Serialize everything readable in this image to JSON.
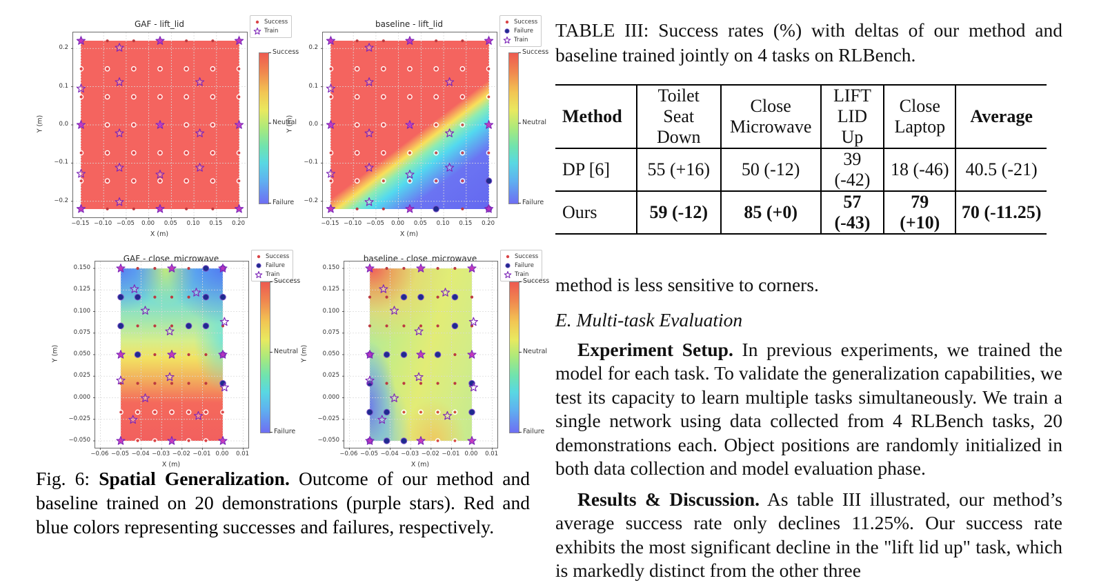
{
  "figure": {
    "caption": {
      "lead": "Fig. 6: ",
      "bold": "Spatial Generalization.",
      "rest": " Outcome of our method and baseline trained on 20 demonstrations (purple stars). Red and blue colors representing successes and failures, respectively."
    },
    "colors": {
      "success_dot": "#d94346",
      "success_dot_dark": "#bc3a40",
      "failure_fill": "#1f2b8e",
      "failure_edge": "#7a50c8",
      "train_stroke": "#7d26b8",
      "train_fill": "#c437c4",
      "heat_red": "#f4645f",
      "grid_line": "#d9d9d9",
      "colorbar_gradient": "linear-gradient(180deg,#ee5a50 0%,#f0894f 13%,#f2c553 26%,#e9e95f 38%,#aae97c 50%,#70e3ae 62%,#59d8e2 73%,#5fb0f0 85%,#6e6ef2 100%)"
    },
    "colorbar_labels": [
      "Success",
      "Neutral",
      "Failure"
    ],
    "plots": [
      {
        "id": "gaf-lift-lid",
        "title": "GAF - lift_lid",
        "xlabel": "X (m)",
        "ylabel": "Y (m)",
        "xlim": [
          -0.1675,
          0.2175
        ],
        "ylim": [
          -0.242,
          0.242
        ],
        "xticks": [
          -0.15,
          -0.1,
          -0.05,
          0.0,
          0.05,
          0.1,
          0.15,
          0.2
        ],
        "xtick_labels": [
          "−0.15",
          "−0.10",
          "−0.05",
          "0.00",
          "0.05",
          "0.10",
          "0.15",
          "0.20"
        ],
        "yticks": [
          0.2,
          0.1,
          0.0,
          -0.1,
          -0.2
        ],
        "ytick_labels": [
          "0.2",
          "0.1",
          "0.0",
          "−0.1",
          "−0.2"
        ],
        "grid_x": [
          -0.15,
          -0.0917,
          -0.0333,
          0.025,
          0.0833,
          0.1417,
          0.2
        ],
        "grid_y": [
          0.22,
          0.1467,
          0.0733,
          0,
          -0.0733,
          -0.1467,
          -0.22
        ],
        "ring_rows": [
          1,
          2,
          3,
          4,
          5
        ],
        "legend": [
          "Success",
          "Train"
        ],
        "bg": "linear-gradient(180deg,#f4645f,#f4645f)",
        "failures": [],
        "stars": [
          [
            -0.15,
            0.22,
            1
          ],
          [
            0.025,
            0.22,
            1
          ],
          [
            0.2,
            0.22,
            1
          ],
          [
            -0.065,
            0.202,
            0
          ],
          [
            -0.15,
            0.095,
            0
          ],
          [
            -0.065,
            0.112,
            0
          ],
          [
            0.113,
            0.112,
            0
          ],
          [
            -0.15,
            0,
            1
          ],
          [
            0.025,
            0,
            1
          ],
          [
            0.2,
            0,
            1
          ],
          [
            -0.065,
            -0.022,
            0
          ],
          [
            0.113,
            -0.022,
            0
          ],
          [
            -0.15,
            -0.128,
            0
          ],
          [
            -0.065,
            -0.112,
            0
          ],
          [
            0.113,
            -0.112,
            0
          ],
          [
            0.025,
            -0.13,
            0
          ],
          [
            -0.065,
            -0.202,
            0
          ],
          [
            -0.15,
            -0.22,
            1
          ],
          [
            0.025,
            -0.22,
            1
          ],
          [
            0.2,
            -0.22,
            1
          ]
        ]
      },
      {
        "id": "baseline-lift-lid",
        "title": "baseline - lift_lid",
        "xlabel": "X (m)",
        "ylabel": "Y (m)",
        "xlim": [
          -0.1675,
          0.2175
        ],
        "ylim": [
          -0.242,
          0.242
        ],
        "xticks": [
          -0.15,
          -0.1,
          -0.05,
          0.0,
          0.05,
          0.1,
          0.15,
          0.2
        ],
        "xtick_labels": [
          "−0.15",
          "−0.10",
          "−0.05",
          "0.00",
          "0.05",
          "0.10",
          "0.15",
          "0.20"
        ],
        "yticks": [
          0.2,
          0.1,
          0.0,
          -0.1,
          -0.2
        ],
        "ytick_labels": [
          "0.2",
          "0.1",
          "0.0",
          "−0.1",
          "−0.2"
        ],
        "grid_x": [
          -0.15,
          -0.0917,
          -0.0333,
          0.025,
          0.0833,
          0.1417,
          0.2
        ],
        "grid_y": [
          0.22,
          0.1467,
          0.0733,
          0,
          -0.0733,
          -0.1467,
          -0.22
        ],
        "ring_rows": [
          1,
          2,
          3,
          4,
          5
        ],
        "legend": [
          "Success",
          "Failure",
          "Train"
        ],
        "bg": "linear-gradient(143deg, rgba(244,100,95,0) 0%, rgba(244,100,95,0) 52%, rgba(250,224,90,0) 55%, #f9e05a 60%, #8cecb4 64%, #53d9ef 69%, #6b74f2 79%, #6468f0 100%), linear-gradient(180deg,#f4645f,#f4645f)",
        "failures": [
          [
            0.0833,
            -0.22
          ],
          [
            0.2,
            -0.1467
          ],
          [
            0.2,
            -0.22
          ]
        ],
        "stars": [
          [
            -0.15,
            0.22,
            1
          ],
          [
            0.025,
            0.22,
            1
          ],
          [
            0.2,
            0.22,
            1
          ],
          [
            -0.065,
            0.202,
            0
          ],
          [
            -0.15,
            0.095,
            0
          ],
          [
            -0.065,
            0.112,
            0
          ],
          [
            0.113,
            0.112,
            0
          ],
          [
            -0.15,
            0,
            1
          ],
          [
            0.025,
            0,
            1
          ],
          [
            0.2,
            0,
            1
          ],
          [
            -0.065,
            -0.022,
            0
          ],
          [
            0.113,
            -0.022,
            0
          ],
          [
            -0.15,
            -0.128,
            0
          ],
          [
            -0.065,
            -0.112,
            0
          ],
          [
            0.113,
            -0.112,
            0
          ],
          [
            0.025,
            -0.13,
            0
          ],
          [
            -0.065,
            -0.202,
            0
          ],
          [
            -0.15,
            -0.22,
            1
          ],
          [
            0.025,
            -0.22,
            1
          ],
          [
            0.2,
            -0.22,
            1
          ]
        ]
      },
      {
        "id": "gaf-close-microwave",
        "title": "GAF - close_microwave",
        "xlabel": "X (m)",
        "ylabel": "Y (m)",
        "xlim": [
          -0.0625,
          0.0125
        ],
        "ylim": [
          -0.058,
          0.158
        ],
        "xticks": [
          -0.06,
          -0.05,
          -0.04,
          -0.03,
          -0.02,
          -0.01,
          0.0,
          0.01
        ],
        "xtick_labels": [
          "−0.06",
          "−0.05",
          "−0.04",
          "−0.03",
          "−0.02",
          "−0.01",
          "0.00",
          "0.01"
        ],
        "yticks": [
          0.15,
          0.125,
          0.1,
          0.075,
          0.05,
          0.025,
          0.0,
          -0.025,
          -0.05
        ],
        "ytick_labels": [
          "0.150",
          "0.125",
          "0.100",
          "0.075",
          "0.050",
          "0.025",
          "0.000",
          "−0.025",
          "−0.050"
        ],
        "grid_x": [
          -0.05,
          -0.0417,
          -0.0333,
          -0.025,
          -0.0167,
          -0.0083,
          0
        ],
        "grid_y": [
          0.15,
          0.1167,
          0.0833,
          0.05,
          0.0167,
          -0.0167,
          -0.05
        ],
        "ring_rows": [
          5,
          6
        ],
        "legend": [
          "Success",
          "Failure",
          "Train"
        ],
        "bg": "radial-gradient(circle at 0% 0%, rgba(85,115,240,0.8) 0%, rgba(85,115,240,0) 22%), radial-gradient(circle at 100% 0%, rgba(80,110,242,0.85) 0%, rgba(80,110,242,0) 28%), radial-gradient(ellipse 30% 22% at 44% 0%, rgba(205,238,110,0.9), rgba(205,238,110,0) 100%), radial-gradient(ellipse 28% 30% at 100% 42%, rgba(90,225,235,0.75), rgba(90,225,235,0) 100%), linear-gradient(180deg, #5ec8f2 0%, #72dbd8 16%, #a2e6b0 30%, #d6ee8c 42%, #f2e262 52%, #f2b05c 64%, #f4695c 78%, #f2605e 100%)",
        "failures": [
          [
            -0.0083,
            0.15
          ],
          [
            0,
            0.15
          ],
          [
            -0.05,
            0.1167
          ],
          [
            -0.0417,
            0.1167
          ],
          [
            -0.0083,
            0.1167
          ],
          [
            0,
            0.1167
          ],
          [
            -0.05,
            0.0833
          ],
          [
            -0.0167,
            0.0833
          ],
          [
            -0.0083,
            0.0833
          ],
          [
            -0.0417,
            0.05
          ],
          [
            0,
            0.05
          ],
          [
            0,
            0.0167
          ]
        ],
        "stars": [
          [
            -0.05,
            0.15,
            1
          ],
          [
            -0.025,
            0.15,
            1
          ],
          [
            0,
            0.15,
            1
          ],
          [
            -0.0433,
            0.126,
            0
          ],
          [
            -0.013,
            0.122,
            0
          ],
          [
            -0.038,
            0.101,
            0
          ],
          [
            0.0008,
            0.088,
            0
          ],
          [
            -0.026,
            0.077,
            0
          ],
          [
            -0.05,
            0.05,
            1
          ],
          [
            -0.025,
            0.05,
            1
          ],
          [
            0,
            0.05,
            1
          ],
          [
            -0.05,
            0.02,
            0
          ],
          [
            -0.026,
            0.024,
            0
          ],
          [
            0.0008,
            0.012,
            0
          ],
          [
            -0.038,
            -0.0005,
            0
          ],
          [
            -0.044,
            -0.0255,
            0
          ],
          [
            -0.012,
            -0.021,
            0
          ],
          [
            -0.05,
            -0.05,
            1
          ],
          [
            -0.025,
            -0.05,
            1
          ],
          [
            0,
            -0.05,
            1
          ]
        ]
      },
      {
        "id": "baseline-close-microwave",
        "title": "baseline - close_microwave",
        "xlabel": "X (m)",
        "ylabel": "Y (m)",
        "xlim": [
          -0.0625,
          0.0125
        ],
        "ylim": [
          -0.058,
          0.158
        ],
        "xticks": [
          -0.06,
          -0.05,
          -0.04,
          -0.03,
          -0.02,
          -0.01,
          0.0,
          0.01
        ],
        "xtick_labels": [
          "−0.06",
          "−0.05",
          "−0.04",
          "−0.03",
          "−0.02",
          "−0.01",
          "0.00",
          "0.01"
        ],
        "yticks": [
          0.15,
          0.125,
          0.1,
          0.075,
          0.05,
          0.025,
          0.0,
          -0.025,
          -0.05
        ],
        "ytick_labels": [
          "0.150",
          "0.125",
          "0.100",
          "0.075",
          "0.050",
          "0.025",
          "0.000",
          "−0.025",
          "−0.050"
        ],
        "grid_x": [
          -0.05,
          -0.0417,
          -0.0333,
          -0.025,
          -0.0167,
          -0.0083,
          0
        ],
        "grid_y": [
          0.15,
          0.1167,
          0.0833,
          0.05,
          0.0167,
          -0.0167,
          -0.05
        ],
        "ring_rows": [
          5,
          6
        ],
        "legend": [
          "Success",
          "Failure",
          "Train"
        ],
        "bg": "radial-gradient(circle at 3% 0%, rgba(244,92,84,0.95) 0%, rgba(246,150,80,0.8) 10%, rgba(248,208,100,0.55) 22%, rgba(248,208,100,0) 38%), radial-gradient(ellipse 35% 50% at 0% 80%, rgba(100,115,242,0.9) 0%, rgba(105,170,240,0.55) 45%, rgba(105,170,240,0) 75%), radial-gradient(ellipse 30% 45% at 18% 100%, rgba(110,190,245,0.6), rgba(110,190,245,0) 75%), radial-gradient(ellipse 40% 30% at 62% 100%, rgba(246,190,85,0.75), rgba(246,190,85,0) 80%), linear-gradient(105deg, #a8e8a8 0%, #c8ec84 30%, #e2ec76 55%, #d4ec86 80%, #c4ea90 100%)",
        "failures": [
          [
            -0.0333,
            0.1167
          ],
          [
            -0.025,
            0.1167
          ],
          [
            -0.0083,
            0.1167
          ],
          [
            -0.0083,
            0.0833
          ],
          [
            -0.05,
            0.05
          ],
          [
            -0.0417,
            0.05
          ],
          [
            -0.0333,
            0.05
          ],
          [
            -0.0167,
            0.05
          ],
          [
            -0.05,
            0.0167
          ],
          [
            0,
            0.0167
          ],
          [
            -0.05,
            -0.0167
          ],
          [
            -0.0417,
            -0.0167
          ],
          [
            0,
            -0.0167
          ],
          [
            -0.05,
            -0.05
          ],
          [
            -0.0417,
            -0.05
          ],
          [
            -0.0333,
            -0.05
          ]
        ],
        "stars": [
          [
            -0.05,
            0.15,
            1
          ],
          [
            -0.025,
            0.15,
            1
          ],
          [
            0,
            0.15,
            1
          ],
          [
            -0.0433,
            0.126,
            0
          ],
          [
            -0.013,
            0.122,
            0
          ],
          [
            -0.038,
            0.101,
            0
          ],
          [
            0.0008,
            0.088,
            0
          ],
          [
            -0.026,
            0.077,
            0
          ],
          [
            -0.05,
            0.05,
            1
          ],
          [
            -0.025,
            0.05,
            1
          ],
          [
            0,
            0.05,
            1
          ],
          [
            -0.05,
            0.02,
            0
          ],
          [
            -0.026,
            0.024,
            0
          ],
          [
            0.0008,
            0.012,
            0
          ],
          [
            -0.038,
            -0.0005,
            0
          ],
          [
            -0.044,
            -0.0255,
            0
          ],
          [
            -0.012,
            -0.021,
            0
          ],
          [
            -0.05,
            -0.05,
            1
          ],
          [
            -0.025,
            -0.05,
            1
          ],
          [
            0,
            -0.05,
            1
          ]
        ]
      }
    ]
  },
  "right": {
    "table_caption": "TABLE III: Success rates (%) with deltas of our method and baseline trained jointly on 4 tasks on RLBench.",
    "table": {
      "headers": [
        {
          "l1": "Method",
          "l2": ""
        },
        {
          "l1": "Toilet",
          "l2": "Seat Down"
        },
        {
          "l1": "Close",
          "l2": "Microwave"
        },
        {
          "l1": "LIFT",
          "l2": "LID Up"
        },
        {
          "l1": "Close",
          "l2": "Laptop"
        },
        {
          "l1": "Average",
          "l2": ""
        }
      ],
      "rows": [
        {
          "method": "DP [6]",
          "cells": [
            "55 (+16)",
            "50 (-12)",
            "39 (-42)",
            "18 (-46)",
            "40.5 (-21)"
          ]
        },
        {
          "method": "Ours",
          "cells": [
            "59 (-12)",
            "85 (+0)",
            "57 (-43)",
            "79 (+10)",
            "70 (-11.25)"
          ]
        }
      ]
    },
    "para0": "method is less sensitive to corners.",
    "section_heading": "E. Multi-task Evaluation",
    "para1_lead": "Experiment Setup.",
    "para1": " In previous experiments, we trained the model for each task. To validate the generalization capabilities, we test its capacity to learn multiple tasks simultaneously. We train a single network using data collected from 4 RLBench tasks, 20 demonstrations each. Object positions are randomly initialized in both data collection and model evaluation phase.",
    "para2_lead": "Results & Discussion.",
    "para2": " As table III illustrated, our method’s average success rate only declines 11.25%. Our success rate exhibits the most significant decline in the \"lift lid up\" task, which is markedly distinct from the other three"
  }
}
